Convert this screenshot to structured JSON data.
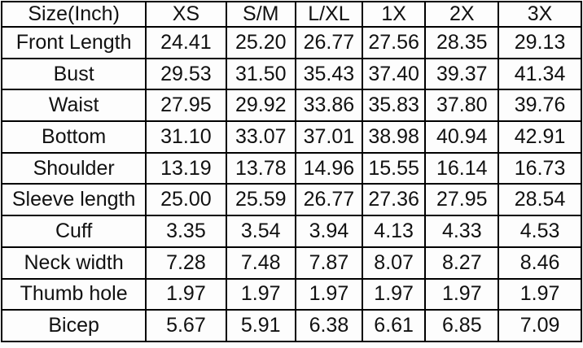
{
  "colors": {
    "border": "#000000",
    "text": "#111111",
    "background": "#fdfdfd"
  },
  "chart_data": {
    "type": "table",
    "title": "Size(Inch)",
    "units": "Inch",
    "columns": [
      "Size(Inch)",
      "XS",
      "S/M",
      "L/XL",
      "1X",
      "2X",
      "3X"
    ],
    "rows": [
      {
        "label": "Front Length",
        "values": [
          "24.41",
          "25.20",
          "26.77",
          "27.56",
          "28.35",
          "29.13"
        ]
      },
      {
        "label": "Bust",
        "values": [
          "29.53",
          "31.50",
          "35.43",
          "37.40",
          "39.37",
          "41.34"
        ]
      },
      {
        "label": "Waist",
        "values": [
          "27.95",
          "29.92",
          "33.86",
          "35.83",
          "37.80",
          "39.76"
        ]
      },
      {
        "label": "Bottom",
        "values": [
          "31.10",
          "33.07",
          "37.01",
          "38.98",
          "40.94",
          "42.91"
        ]
      },
      {
        "label": "Shoulder",
        "values": [
          "13.19",
          "13.78",
          "14.96",
          "15.55",
          "16.14",
          "16.73"
        ]
      },
      {
        "label": "Sleeve length",
        "values": [
          "25.00",
          "25.59",
          "26.77",
          "27.36",
          "27.95",
          "28.54"
        ]
      },
      {
        "label": "Cuff",
        "values": [
          "3.35",
          "3.54",
          "3.94",
          "4.13",
          "4.33",
          "4.53"
        ]
      },
      {
        "label": "Neck width",
        "values": [
          "7.28",
          "7.48",
          "7.87",
          "8.07",
          "8.27",
          "8.46"
        ]
      },
      {
        "label": "Thumb hole",
        "values": [
          "1.97",
          "1.97",
          "1.97",
          "1.97",
          "1.97",
          "1.97"
        ]
      },
      {
        "label": "Bicep",
        "values": [
          "5.67",
          "5.91",
          "6.38",
          "6.61",
          "6.85",
          "7.09"
        ]
      }
    ]
  }
}
